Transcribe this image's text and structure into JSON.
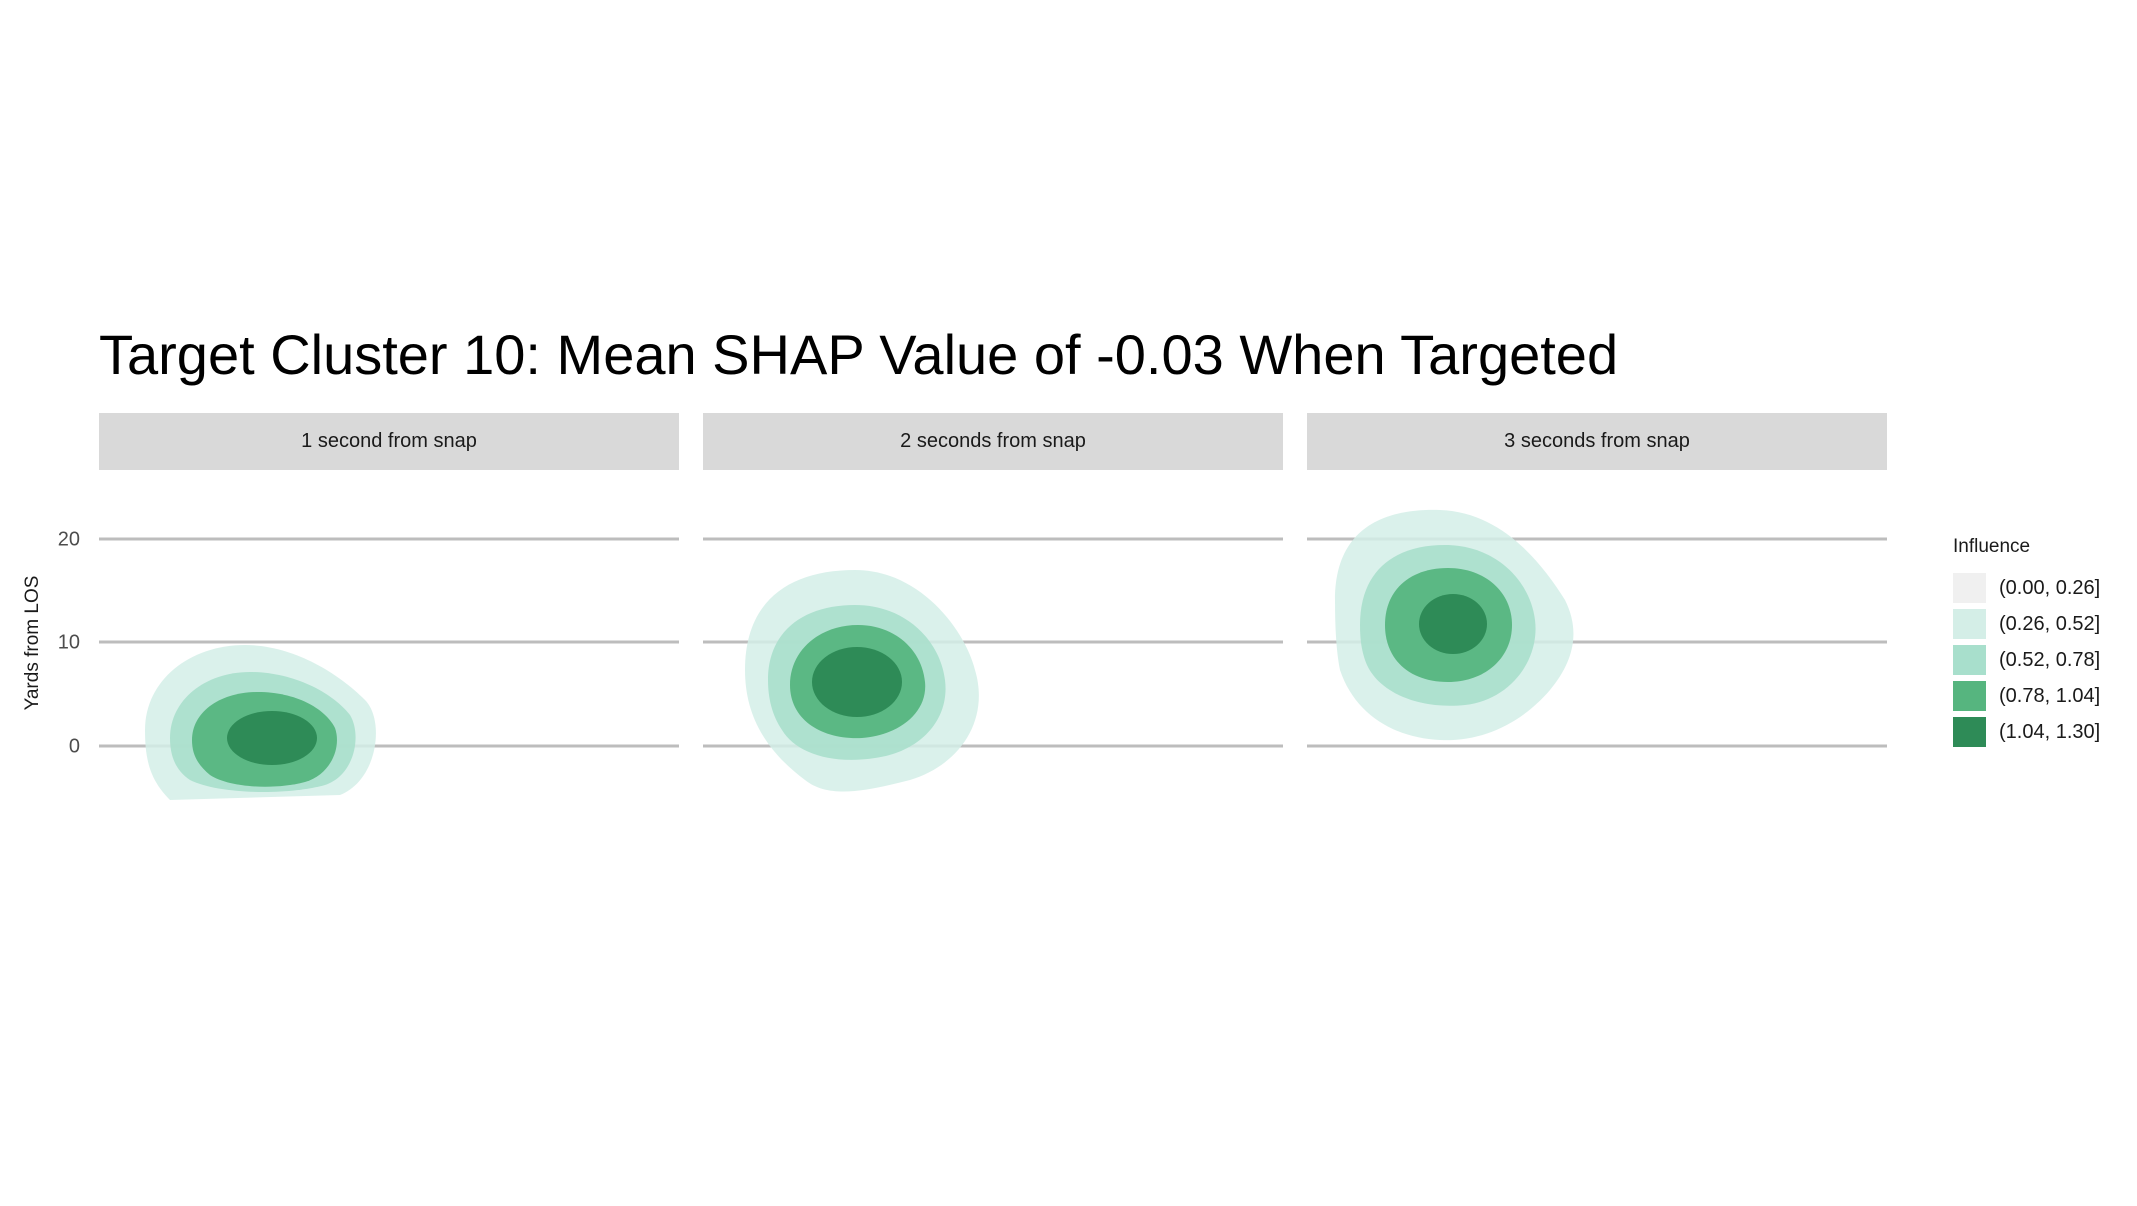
{
  "chart_data": {
    "type": "contour",
    "title": "Target Cluster 10: Mean SHAP Value of -0.03 When Targeted",
    "ylabel": "Yards from LOS",
    "xlabel": "",
    "yticks": [
      0,
      10,
      20
    ],
    "ylim": [
      -5,
      23
    ],
    "legend": {
      "title": "Influence",
      "placement": "right",
      "levels": [
        {
          "label": "(0.00, 0.26]",
          "color": "#f0f0f0"
        },
        {
          "label": "(0.26, 0.52]",
          "color": "#d4eee7"
        },
        {
          "label": "(0.52, 0.78]",
          "color": "#a8dfcc"
        },
        {
          "label": "(0.78, 1.04]",
          "color": "#56b57f"
        },
        {
          "label": "(1.04, 1.30]",
          "color": "#2e8b57"
        }
      ]
    },
    "panels": [
      {
        "label": "1 second from snap",
        "center_y": 0.4
      },
      {
        "label": "2 seconds from snap",
        "center_y": 6.0
      },
      {
        "label": "3 seconds from snap",
        "center_y": 11.5
      }
    ]
  }
}
